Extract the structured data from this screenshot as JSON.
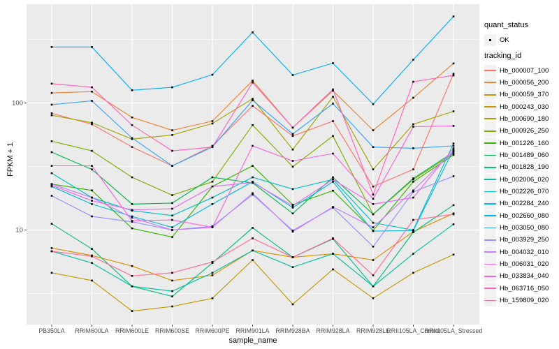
{
  "figure": {
    "panel": {
      "bg_color": "#EBEBEB",
      "grid_color": "#FFFFFF",
      "key_bg_color": "#F2F2F2",
      "tick_color": "#333333",
      "axis_text_color": "#4D4D4D",
      "point_color": "#000000"
    },
    "legend": {
      "quant_status": {
        "title": "quant_status",
        "items": [
          {
            "label": "OK",
            "symbol": "black-point"
          }
        ]
      },
      "tracking_id": {
        "title": "tracking_id"
      }
    }
  },
  "chart_data": {
    "type": "line",
    "title": "",
    "xlabel": "sample_name",
    "ylabel": "FPKM + 1",
    "y_scale": "log10",
    "ylim": [
      1.8,
      600
    ],
    "y_ticks": [
      100,
      10
    ],
    "y_tick_labels": [
      "100",
      "10"
    ],
    "y_minor_ticks": [
      316.2,
      31.62,
      3.162
    ],
    "grid": true,
    "legend_position": "right",
    "point_marker": "black-square",
    "categories": [
      "PB350LA",
      "RRIM600LA",
      "RRIM600LE",
      "RRIM600SE",
      "RRIM600PE",
      "RRIM901LA",
      "RRIM928BA",
      "RRIM928LA",
      "RRIM928LE",
      "RRII105LA_Control",
      "RRII105LA_Stressed"
    ],
    "series": [
      {
        "name": "Hb_000007_100",
        "color": "#F8766D",
        "values": [
          83,
          68,
          45,
          32,
          46,
          95,
          55,
          72,
          22,
          30,
          170
        ]
      },
      {
        "name": "Hb_000056_200",
        "color": "#EA8331",
        "values": [
          120,
          123,
          77,
          61,
          72,
          150,
          64,
          125,
          61,
          110,
          205
        ]
      },
      {
        "name": "Hb_000059_370",
        "color": "#D89000",
        "values": [
          7.2,
          6.3,
          5.2,
          4.0,
          4.4,
          6.9,
          6.1,
          6.5,
          5.8,
          9.7,
          13.5
        ]
      },
      {
        "name": "Hb_000243_030",
        "color": "#C09B00",
        "values": [
          4.6,
          4.0,
          2.3,
          2.5,
          2.9,
          5.8,
          2.6,
          4.9,
          2.9,
          4.6,
          6.4
        ]
      },
      {
        "name": "Hb_000690_180",
        "color": "#A3A500",
        "values": [
          80,
          70,
          52,
          56,
          69,
          108,
          43,
          112,
          30,
          68,
          86
        ]
      },
      {
        "name": "Hb_000926_250",
        "color": "#7CAE00",
        "values": [
          50,
          42,
          26,
          18.8,
          24,
          67,
          31.5,
          55,
          13.3,
          25,
          40
        ]
      },
      {
        "name": "Hb_001226_160",
        "color": "#39B600",
        "values": [
          23,
          20.5,
          10.3,
          8.8,
          22,
          32,
          15.8,
          20.4,
          9.9,
          24,
          39
        ]
      },
      {
        "name": "Hb_001489_060",
        "color": "#00BB4E",
        "values": [
          41,
          30,
          16,
          16.3,
          26,
          23.5,
          13.5,
          26,
          13.3,
          25.5,
          41
        ]
      },
      {
        "name": "Hb_001828_190",
        "color": "#00BF7D",
        "values": [
          11.2,
          7.1,
          3.6,
          3.0,
          5.5,
          10.4,
          6.1,
          8.5,
          3.6,
          9.6,
          15.7
        ]
      },
      {
        "name": "Hb_002006_020",
        "color": "#00C1A3",
        "values": [
          6.8,
          5.5,
          3.6,
          3.3,
          4.6,
          6.9,
          5.1,
          6.5,
          3.6,
          6.5,
          11.1
        ]
      },
      {
        "name": "Hb_002226_070",
        "color": "#00BFC4",
        "values": [
          28,
          18,
          14.2,
          13,
          18,
          26,
          21,
          25,
          11.4,
          10,
          48
        ]
      },
      {
        "name": "Hb_002284_240",
        "color": "#00BAE0",
        "values": [
          22,
          16,
          12.8,
          10.5,
          16,
          24,
          15,
          24,
          9.8,
          9.9,
          43
        ]
      },
      {
        "name": "Hb_002660_080",
        "color": "#00B0F6",
        "values": [
          276,
          276,
          126,
          133,
          167,
          360,
          166,
          206,
          98,
          219,
          480
        ]
      },
      {
        "name": "Hb_003050_080",
        "color": "#35A2FF",
        "values": [
          97,
          104,
          53,
          32,
          45,
          105,
          57,
          99,
          45,
          44,
          46
        ]
      },
      {
        "name": "Hb_003929_250",
        "color": "#9590FF",
        "values": [
          18.6,
          12.8,
          11.6,
          10,
          10.7,
          19,
          9.9,
          15,
          7.4,
          20,
          26.5
        ]
      },
      {
        "name": "Hb_004032_010",
        "color": "#C77CFF",
        "values": [
          23,
          18,
          12.5,
          10,
          10.5,
          19.5,
          9.7,
          15.2,
          10.5,
          20.5,
          42
        ]
      },
      {
        "name": "Hb_006031_020",
        "color": "#E76BF3",
        "values": [
          22.5,
          17,
          14.4,
          14.7,
          22,
          23.7,
          15.5,
          25,
          16,
          18,
          44
        ]
      },
      {
        "name": "Hb_033834_040",
        "color": "#FA62DB",
        "values": [
          32,
          32,
          11.8,
          12,
          10.5,
          46,
          35,
          40,
          17.6,
          65,
          66
        ]
      },
      {
        "name": "Hb_063716_050",
        "color": "#FF62BC",
        "values": [
          142,
          133,
          67,
          42,
          45,
          145,
          64,
          128,
          19,
          147,
          165
        ]
      },
      {
        "name": "Hb_159809_020",
        "color": "#FF6A98",
        "values": [
          6.8,
          6.2,
          4.35,
          4.6,
          5.6,
          8.6,
          6.1,
          8.6,
          4.4,
          12,
          13.3
        ]
      }
    ]
  }
}
